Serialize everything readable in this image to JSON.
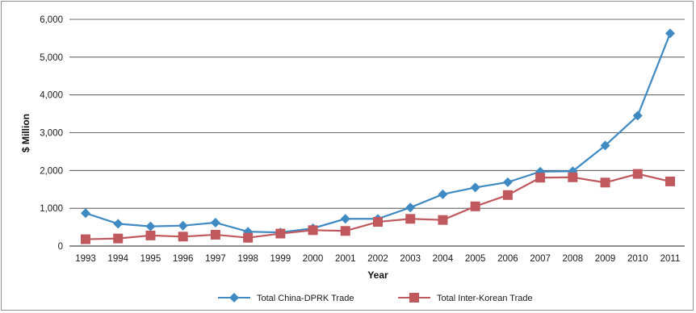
{
  "chart_data": {
    "type": "line",
    "title": "",
    "xlabel": "Year",
    "ylabel": "$ Million",
    "categories": [
      "1993",
      "1994",
      "1995",
      "1996",
      "1997",
      "1998",
      "1999",
      "2000",
      "2001",
      "2002",
      "2003",
      "2004",
      "2005",
      "2006",
      "2007",
      "2008",
      "2009",
      "2010",
      "2011"
    ],
    "ylim": [
      0,
      6000
    ],
    "yticks": [
      0,
      1000,
      2000,
      3000,
      4000,
      5000,
      6000
    ],
    "ytick_labels": [
      "0",
      "1,000",
      "2,000",
      "3,000",
      "4,000",
      "5,000",
      "6,000"
    ],
    "grid": true,
    "legend_position": "bottom",
    "series": [
      {
        "name": "Total China-DPRK Trade",
        "color": "#3f8ac2",
        "marker": "diamond",
        "values": [
          870,
          590,
          520,
          540,
          620,
          380,
          360,
          470,
          720,
          720,
          1020,
          1370,
          1550,
          1690,
          1970,
          1980,
          2660,
          3450,
          5630
        ]
      },
      {
        "name": "Total Inter-Korean Trade",
        "color": "#c0595e",
        "marker": "square",
        "values": [
          180,
          200,
          280,
          250,
          300,
          220,
          330,
          420,
          400,
          640,
          720,
          690,
          1050,
          1350,
          1810,
          1820,
          1680,
          1910,
          1710
        ]
      }
    ]
  }
}
